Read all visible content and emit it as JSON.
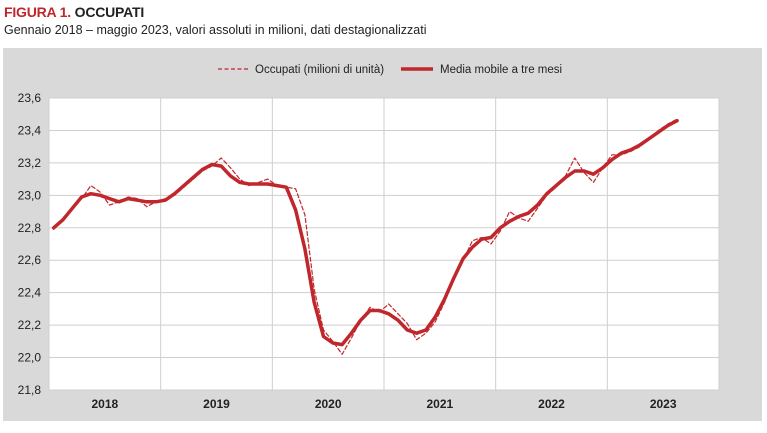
{
  "header": {
    "figure_label": "FIGURA 1.",
    "figure_name": "OCCUPATI",
    "subtitle": "Gennaio 2018 – maggio 2023, valori assoluti in milioni, dati destagionalizzati"
  },
  "colors": {
    "series": "#c0272d",
    "panel_bg": "#d9d9d9",
    "plot_bg": "#ffffff",
    "grid": "#cfcfcf"
  },
  "chart_data": {
    "type": "line",
    "ylim": [
      21.8,
      23.6
    ],
    "y_ticks": [
      "23,6",
      "23,4",
      "23,2",
      "23,0",
      "22,8",
      "22,6",
      "22,4",
      "22,2",
      "22,0",
      "21,8"
    ],
    "x_tick_labels": [
      "2018",
      "2019",
      "2020",
      "2021",
      "2022",
      "2023"
    ],
    "grid": true,
    "legend_position": "top-center",
    "series": [
      {
        "name": "Occupati (milioni di unità)",
        "style": "dashed",
        "values": [
          22.79,
          22.86,
          22.92,
          22.98,
          23.06,
          23.02,
          22.94,
          22.96,
          22.99,
          22.98,
          22.93,
          22.96,
          22.98,
          23.0,
          23.05,
          23.1,
          23.15,
          23.18,
          23.23,
          23.17,
          23.1,
          23.06,
          23.08,
          23.1,
          23.06,
          23.05,
          23.04,
          22.88,
          22.42,
          22.17,
          22.1,
          22.02,
          22.12,
          22.23,
          22.31,
          22.28,
          22.33,
          22.27,
          22.21,
          22.11,
          22.15,
          22.22,
          22.34,
          22.48,
          22.6,
          22.72,
          22.74,
          22.7,
          22.78,
          22.9,
          22.86,
          22.84,
          22.92,
          23.0,
          23.05,
          23.12,
          23.23,
          23.14,
          23.08,
          23.17,
          23.25,
          23.25,
          23.27,
          23.3,
          23.35,
          23.4,
          23.44,
          23.47
        ]
      },
      {
        "name": "Media mobile a tre mesi",
        "style": "solid",
        "values": [
          22.8,
          22.85,
          22.92,
          22.99,
          23.01,
          23.0,
          22.98,
          22.96,
          22.98,
          22.97,
          22.96,
          22.96,
          22.97,
          23.01,
          23.06,
          23.11,
          23.16,
          23.19,
          23.18,
          23.12,
          23.08,
          23.07,
          23.07,
          23.07,
          23.06,
          23.05,
          22.91,
          22.67,
          22.34,
          22.13,
          22.09,
          22.08,
          22.15,
          22.23,
          22.29,
          22.29,
          22.27,
          22.23,
          22.17,
          22.15,
          22.17,
          22.25,
          22.36,
          22.49,
          22.61,
          22.68,
          22.73,
          22.74,
          22.8,
          22.84,
          22.87,
          22.89,
          22.94,
          23.01,
          23.06,
          23.11,
          23.15,
          23.15,
          23.13,
          23.17,
          23.22,
          23.26,
          23.28,
          23.31,
          23.35,
          23.39,
          23.43,
          23.46
        ]
      }
    ]
  }
}
